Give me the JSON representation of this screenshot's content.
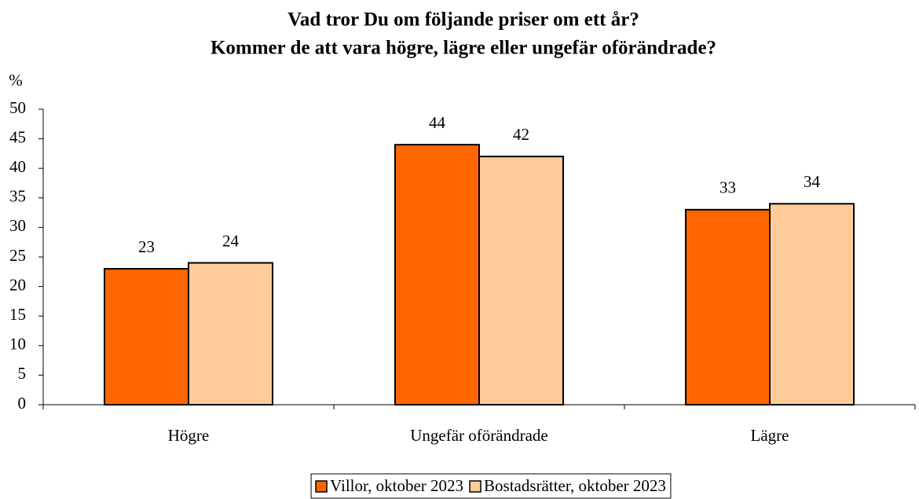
{
  "chart_data": {
    "type": "bar",
    "title": "Vad tror Du om följande priser om ett år?",
    "subtitle": "Kommer de att vara högre, lägre eller ungefär oförändrade?",
    "y_label": "%",
    "categories": [
      "Högre",
      "Ungefär oförändrade",
      "Lägre"
    ],
    "series": [
      {
        "name": "Villor, oktober 2023",
        "color": "#ff6600",
        "values": [
          23,
          44,
          33
        ]
      },
      {
        "name": "Bostadsrätter, oktober 2023",
        "color": "#ffcc99",
        "values": [
          24,
          42,
          34
        ]
      }
    ],
    "ylim": [
      0,
      50
    ],
    "yticks": [
      0,
      5,
      10,
      15,
      20,
      25,
      30,
      35,
      40,
      45,
      50
    ],
    "legend": "bottom"
  }
}
